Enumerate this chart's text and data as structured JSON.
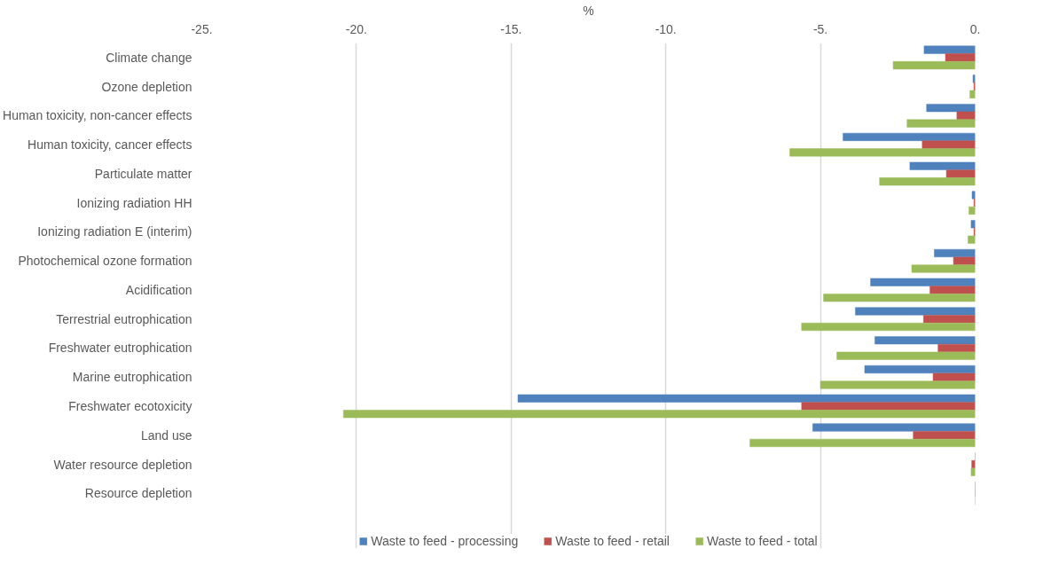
{
  "chart_data": {
    "type": "bar",
    "orientation": "horizontal",
    "xlabel": "%",
    "categories": [
      "Climate change",
      "Ozone depletion",
      "Human toxicity, non-cancer effects",
      "Human toxicity, cancer effects",
      "Particulate matter",
      "Ionizing radiation HH",
      "Ionizing radiation E (interim)",
      "Photochemical ozone formation",
      "Acidification",
      "Terrestrial eutrophication",
      "Freshwater eutrophication",
      "Marine eutrophication",
      "Freshwater ecotoxicity",
      "Land use",
      "Water resource depletion",
      "Resource depletion"
    ],
    "series": [
      {
        "name": "Waste to feed - processing",
        "color": "#4f81bd",
        "values": [
          -1.65,
          -0.07,
          -1.57,
          -4.27,
          -2.11,
          -0.1,
          -0.13,
          -1.32,
          -3.38,
          -3.87,
          -3.24,
          -3.57,
          -14.78,
          -5.25,
          0,
          0
        ]
      },
      {
        "name": "Waste to feed - retail",
        "color": "#c0504d",
        "values": [
          -0.96,
          -0.04,
          -0.59,
          -1.71,
          -0.93,
          -0.04,
          -0.04,
          -0.7,
          -1.46,
          -1.67,
          -1.2,
          -1.36,
          -5.61,
          -2.0,
          -0.11,
          0
        ]
      },
      {
        "name": "Waste to feed - total",
        "color": "#9bbb59",
        "values": [
          -2.65,
          -0.17,
          -2.2,
          -5.99,
          -3.09,
          -0.2,
          -0.23,
          -2.05,
          -4.9,
          -5.61,
          -4.47,
          -5.0,
          -20.42,
          -7.28,
          -0.13,
          0
        ]
      }
    ],
    "xlim": [
      -25,
      0
    ],
    "xticks": [
      {
        "value": -25,
        "label": "-25."
      },
      {
        "value": -20,
        "label": "-20."
      },
      {
        "value": -15,
        "label": "-15."
      },
      {
        "value": -10,
        "label": "-10."
      },
      {
        "value": -5,
        "label": "-5."
      },
      {
        "value": 0,
        "label": "0."
      }
    ],
    "grid": "x",
    "legend": "bottom"
  }
}
